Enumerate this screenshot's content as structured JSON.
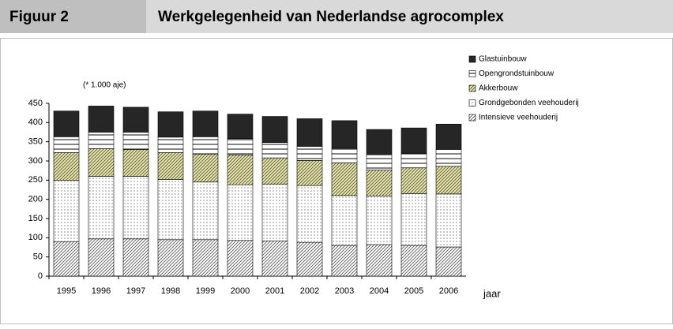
{
  "chart_data": {
    "type": "stacked_bar",
    "figure_label": "Figuur 2",
    "title": "Werkgelegenheid van Nederlandse agrocomplex",
    "unit_note": "(* 1.000 aje)",
    "x_label": "jaar",
    "categories": [
      "1995",
      "1996",
      "1997",
      "1998",
      "1999",
      "2000",
      "2001",
      "2002",
      "2003",
      "2004",
      "2005",
      "2006"
    ],
    "series": [
      {
        "name": "Intensieve veehouderij",
        "color": "#ffffff",
        "pattern": "diagonal",
        "values": [
          90,
          97,
          97,
          95,
          95,
          93,
          92,
          88,
          80,
          82,
          80,
          76
        ]
      },
      {
        "name": "Grondgebonden veehouderij",
        "color": "#ffffff",
        "pattern": "dots",
        "values": [
          160,
          163,
          163,
          157,
          150,
          145,
          148,
          148,
          130,
          127,
          135,
          138
        ]
      },
      {
        "name": "Akkerbouw",
        "color": "#e6e6a0",
        "pattern": "diagonal",
        "values": [
          72,
          72,
          70,
          70,
          73,
          78,
          68,
          65,
          85,
          67,
          67,
          72
        ]
      },
      {
        "name": "Opengrondstuinbouw",
        "color": "#ffffff",
        "pattern": "horizontal",
        "values": [
          41,
          43,
          45,
          40,
          45,
          42,
          40,
          37,
          38,
          40,
          38,
          44
        ]
      },
      {
        "name": "Glastuinbouw",
        "color": "#262626",
        "pattern": "solid",
        "values": [
          67,
          68,
          65,
          66,
          67,
          64,
          68,
          72,
          72,
          66,
          66,
          66
        ]
      }
    ],
    "ylim": [
      0,
      450
    ],
    "yticks": [
      0,
      50,
      100,
      150,
      200,
      250,
      300,
      350,
      400,
      450
    ],
    "legend": "right"
  }
}
